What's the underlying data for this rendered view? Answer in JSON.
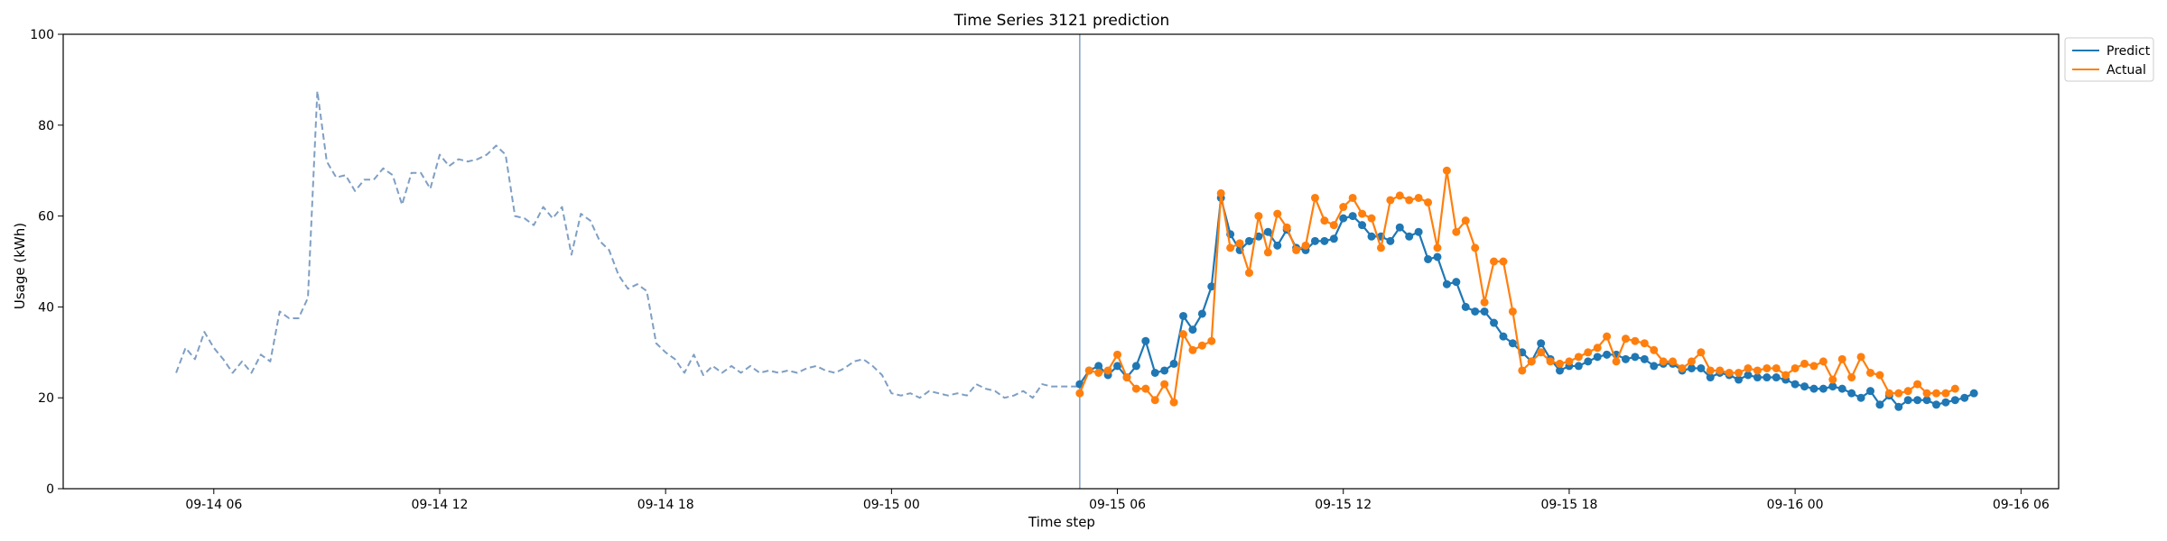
{
  "chart_data": {
    "type": "line",
    "title": "Time Series 3121 prediction",
    "xlabel": "Time step",
    "ylabel": "Usage (kWh)",
    "ylim": [
      0,
      100
    ],
    "yticks": [
      0,
      20,
      40,
      60,
      80,
      100
    ],
    "xlim": [
      "2025-09-14T02:00",
      "2025-09-16T07:00"
    ],
    "xticks": [
      {
        "t": "2025-09-14T06:00",
        "label": "09-14 06"
      },
      {
        "t": "2025-09-14T12:00",
        "label": "09-14 12"
      },
      {
        "t": "2025-09-14T18:00",
        "label": "09-14 18"
      },
      {
        "t": "2025-09-15T00:00",
        "label": "09-15 00"
      },
      {
        "t": "2025-09-15T06:00",
        "label": "09-15 06"
      },
      {
        "t": "2025-09-15T12:00",
        "label": "09-15 12"
      },
      {
        "t": "2025-09-15T18:00",
        "label": "09-15 18"
      },
      {
        "t": "2025-09-16T00:00",
        "label": "09-16 00"
      },
      {
        "t": "2025-09-16T06:00",
        "label": "09-16 06"
      }
    ],
    "legend_position": "top-right, outside plot",
    "colors": {
      "history": "#7f9fc4",
      "predict": "#1f77b4",
      "actual": "#ff7f0e",
      "cutoff": "#7f9fc4"
    },
    "cutoff_time": "2025-09-15T05:00",
    "series": [
      {
        "role": "history",
        "style": "dashed",
        "start": "2025-09-14T05:00",
        "interval_minutes": 15,
        "values": [
          25.5,
          31,
          28.5,
          34.5,
          31,
          28.5,
          25.5,
          28,
          25.5,
          29.5,
          28,
          39,
          37.5,
          37.5,
          42,
          87.5,
          72,
          68.5,
          69,
          65.5,
          68,
          68,
          70.5,
          69,
          62.5,
          69.5,
          69.5,
          66,
          73.5,
          71,
          72.5,
          72,
          72.5,
          73.5,
          75.5,
          73.5,
          60,
          59.5,
          58,
          62,
          59.5,
          62,
          51.5,
          60.5,
          59,
          54.5,
          52.5,
          47,
          44,
          45,
          43.5,
          32,
          30,
          28.5,
          25.5,
          29.5,
          25,
          27,
          25.5,
          27,
          25.5,
          27,
          25.5,
          26,
          25.5,
          26,
          25.5,
          26.5,
          27,
          26,
          25.5,
          26.5,
          28,
          28.5,
          27,
          25,
          21,
          20.5,
          21,
          20,
          21.5,
          21,
          20.5,
          21,
          20.5,
          23,
          22,
          21.5,
          20,
          20.5,
          21.5,
          20,
          23,
          22.5,
          22.5,
          22.5,
          22.5
        ]
      },
      {
        "name": "Predict",
        "role": "predict",
        "start": "2025-09-15T05:00",
        "interval_minutes": 15,
        "values": [
          23,
          26,
          27,
          25,
          27,
          24.5,
          27,
          32.5,
          25.5,
          26,
          27.5,
          38,
          35,
          38.5,
          44.5,
          64,
          56,
          52.5,
          54.5,
          55.5,
          56.5,
          53.5,
          57,
          53,
          52.5,
          54.5,
          54.5,
          55,
          59.5,
          60,
          58,
          55.5,
          55.5,
          54.5,
          57.5,
          55.5,
          56.5,
          50.5,
          51,
          45,
          45.5,
          40,
          39,
          39,
          36.5,
          33.5,
          32,
          30,
          28,
          32,
          28.5,
          26,
          27,
          27,
          28,
          29,
          29.5,
          29.5,
          28.5,
          29,
          28.5,
          27,
          27.5,
          27.5,
          26,
          26.5,
          26.5,
          24.5,
          25.5,
          25,
          24,
          25,
          24.5,
          24.5,
          24.5,
          24,
          23,
          22.5,
          22,
          22,
          22.5,
          22,
          21,
          20,
          21.5,
          18.5,
          20.5,
          18,
          19.5,
          19.5,
          19.5,
          18.5,
          19,
          19.5,
          20,
          21
        ]
      },
      {
        "name": "Actual",
        "role": "actual",
        "start": "2025-09-15T05:00",
        "interval_minutes": 15,
        "values": [
          21,
          26,
          25.5,
          26,
          29.5,
          24.5,
          22,
          22,
          19.5,
          23,
          19,
          34,
          30.5,
          31.5,
          32.5,
          65,
          53,
          54,
          47.5,
          60,
          52,
          60.5,
          57.5,
          52.5,
          53.5,
          64,
          59,
          58,
          62,
          64,
          60.5,
          59.5,
          53,
          63.5,
          64.5,
          63.5,
          64,
          63,
          53,
          70,
          56.5,
          59,
          53,
          41,
          50,
          50,
          39,
          26,
          28,
          30,
          28,
          27.5,
          28,
          29,
          30,
          31,
          33.5,
          28,
          33,
          32.5,
          32,
          30.5,
          28,
          28,
          26.5,
          28,
          30,
          26,
          26,
          25.5,
          25.5,
          26.5,
          26,
          26.5,
          26.5,
          25,
          26.5,
          27.5,
          27,
          28,
          24,
          28.5,
          24.5,
          29,
          25.5,
          25,
          21,
          21,
          21.5,
          23,
          21,
          21,
          21,
          22
        ]
      }
    ]
  }
}
